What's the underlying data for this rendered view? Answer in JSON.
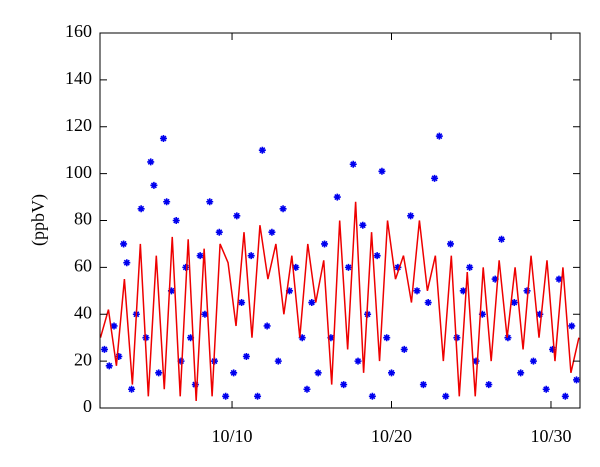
{
  "chart_data": {
    "type": "line",
    "y_label": "(ppbV)",
    "xlim": [
      1.72,
      31.82
    ],
    "ylim": [
      0,
      160
    ],
    "xticks": [
      {
        "value": 10,
        "label": "10/10"
      },
      {
        "value": 20,
        "label": "10/20"
      },
      {
        "value": 30,
        "label": "10/30"
      }
    ],
    "yticks": [
      0,
      20,
      40,
      60,
      80,
      100,
      120,
      140,
      160
    ],
    "series": [
      {
        "type": "scatter",
        "color": "#0000ee",
        "x": [
          2.0,
          2.3,
          2.6,
          2.9,
          3.2,
          3.4,
          3.7,
          4.0,
          4.3,
          4.6,
          4.9,
          5.1,
          5.4,
          5.7,
          5.9,
          6.2,
          6.5,
          6.8,
          7.1,
          7.4,
          7.7,
          8.0,
          8.3,
          8.6,
          8.9,
          9.2,
          9.6,
          10.1,
          10.3,
          10.6,
          10.9,
          11.2,
          11.6,
          11.9,
          12.2,
          12.5,
          12.9,
          13.2,
          13.6,
          14.0,
          14.4,
          14.7,
          15.0,
          15.4,
          15.8,
          16.2,
          16.6,
          17.0,
          17.3,
          17.6,
          17.9,
          18.2,
          18.5,
          18.8,
          19.1,
          19.4,
          19.7,
          20.0,
          20.4,
          20.8,
          21.2,
          21.6,
          22.0,
          22.3,
          22.7,
          23.0,
          23.4,
          23.7,
          24.1,
          24.5,
          24.9,
          25.3,
          25.7,
          26.1,
          26.5,
          26.9,
          27.3,
          27.7,
          28.1,
          28.5,
          28.9,
          29.3,
          29.7,
          30.1,
          30.5,
          30.9,
          31.3,
          31.6
        ],
        "values": [
          25,
          18,
          35,
          22,
          70,
          62,
          8,
          40,
          85,
          30,
          105,
          95,
          15,
          115,
          88,
          50,
          80,
          20,
          60,
          30,
          10,
          65,
          40,
          88,
          20,
          75,
          5,
          15,
          82,
          45,
          22,
          65,
          5,
          110,
          35,
          75,
          20,
          85,
          50,
          60,
          30,
          8,
          45,
          15,
          70,
          30,
          90,
          10,
          60,
          104,
          20,
          78,
          40,
          5,
          65,
          101,
          30,
          15,
          60,
          25,
          82,
          50,
          10,
          45,
          98,
          116,
          5,
          70,
          30,
          50,
          60,
          20,
          40,
          10,
          55,
          72,
          30,
          45,
          15,
          50,
          20,
          40,
          8,
          25,
          55,
          5,
          35,
          12
        ]
      },
      {
        "type": "line",
        "color": "#ee0000",
        "x": [
          1.75,
          2.25,
          2.75,
          3.25,
          3.75,
          4.25,
          4.75,
          5.25,
          5.75,
          6.25,
          6.75,
          7.25,
          7.75,
          8.25,
          8.75,
          9.25,
          9.75,
          10.25,
          10.75,
          11.25,
          11.75,
          12.25,
          12.75,
          13.25,
          13.75,
          14.25,
          14.75,
          15.25,
          15.75,
          16.25,
          16.75,
          17.25,
          17.75,
          18.25,
          18.75,
          19.25,
          19.75,
          20.25,
          20.75,
          21.25,
          21.75,
          22.25,
          22.75,
          23.25,
          23.75,
          24.25,
          24.75,
          25.25,
          25.75,
          26.25,
          26.75,
          27.25,
          27.75,
          28.25,
          28.75,
          29.25,
          29.75,
          30.25,
          30.75,
          31.25,
          31.75
        ],
        "values": [
          30,
          42,
          18,
          55,
          10,
          70,
          5,
          65,
          8,
          73,
          5,
          72,
          3,
          68,
          5,
          70,
          62,
          35,
          75,
          30,
          78,
          55,
          70,
          40,
          65,
          30,
          70,
          45,
          63,
          10,
          80,
          25,
          88,
          15,
          75,
          20,
          80,
          55,
          65,
          45,
          80,
          50,
          65,
          20,
          65,
          5,
          58,
          5,
          60,
          20,
          63,
          30,
          60,
          25,
          65,
          30,
          63,
          20,
          60,
          15,
          30
        ]
      }
    ]
  }
}
